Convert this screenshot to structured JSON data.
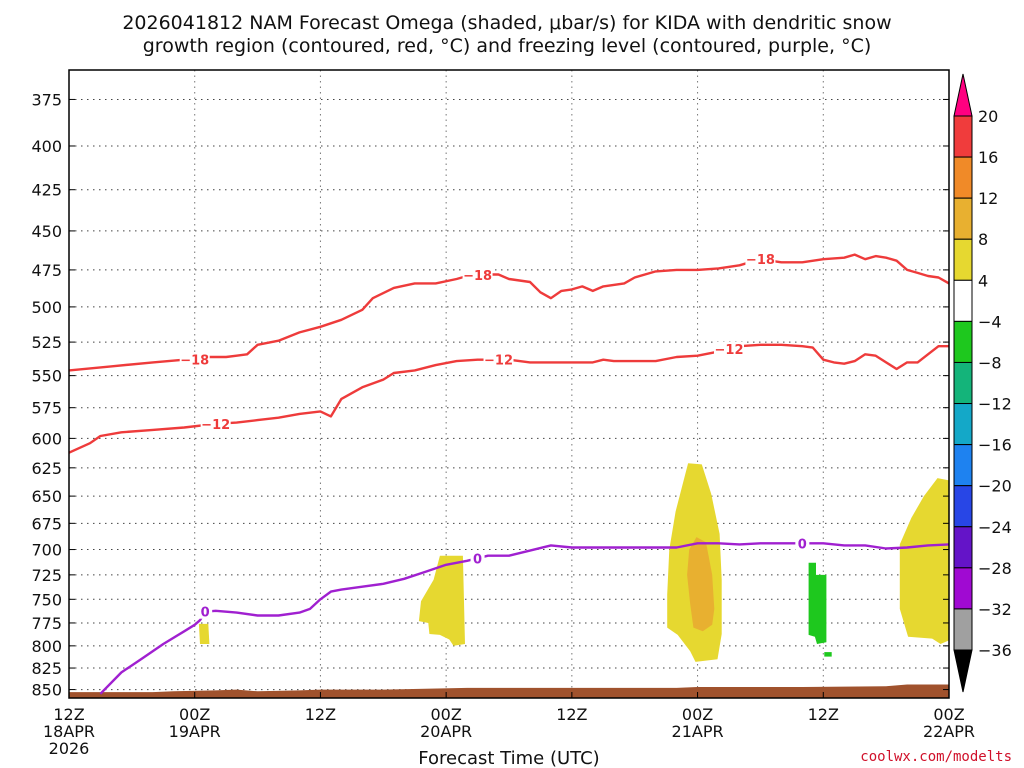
{
  "chart_data": {
    "type": "heatmap",
    "title_line1": "2026041812 NAM Forecast Omega (shaded, μbar/s) for KIDA with dendritic snow",
    "title_line2": "growth region (contoured, red, °C) and freezing level (contoured, purple, °C)",
    "xlabel": "Forecast Time (UTC)",
    "credit": "coolwx.com/modelts",
    "x_range_hours": [
      0,
      84
    ],
    "y_range_hPa": [
      360,
      860
    ],
    "y_ticks": [
      375,
      400,
      425,
      450,
      475,
      500,
      525,
      550,
      575,
      600,
      625,
      650,
      675,
      700,
      725,
      750,
      775,
      800,
      825,
      850
    ],
    "x_ticks": [
      {
        "hour": 0,
        "line1": "12Z",
        "line2": "18APR",
        "line3": "2026"
      },
      {
        "hour": 12,
        "line1": "00Z",
        "line2": "19APR",
        "line3": ""
      },
      {
        "hour": 24,
        "line1": "12Z",
        "line2": "",
        "line3": ""
      },
      {
        "hour": 36,
        "line1": "00Z",
        "line2": "20APR",
        "line3": ""
      },
      {
        "hour": 48,
        "line1": "12Z",
        "line2": "",
        "line3": ""
      },
      {
        "hour": 60,
        "line1": "00Z",
        "line2": "21APR",
        "line3": ""
      },
      {
        "hour": 72,
        "line1": "12Z",
        "line2": "",
        "line3": ""
      },
      {
        "hour": 84,
        "line1": "00Z",
        "line2": "22APR",
        "line3": ""
      }
    ],
    "colorbar": {
      "labels": [
        "20",
        "16",
        "12",
        "8",
        "4",
        "−4",
        "−8",
        "−12",
        "−16",
        "−20",
        "−24",
        "−28",
        "−32",
        "−36"
      ],
      "colors": [
        "#ff0080",
        "#f03c3c",
        "#f08a28",
        "#e8b030",
        "#e6d830",
        "#ffffff",
        "#1ec81e",
        "#14b47a",
        "#14a8c8",
        "#1e82f0",
        "#2846e6",
        "#6414c8",
        "#a00ad2",
        "#a0a0a0",
        "#000000"
      ]
    },
    "series": [
      {
        "name": "-18 C isotherm",
        "label": "−18",
        "color": "#ee3b3b",
        "label_hours": [
          12,
          39,
          66
        ],
        "points": [
          [
            0,
            546
          ],
          [
            4,
            543
          ],
          [
            8,
            540
          ],
          [
            11,
            538
          ],
          [
            12,
            538
          ],
          [
            13,
            536
          ],
          [
            15,
            536
          ],
          [
            16,
            535
          ],
          [
            17,
            534
          ],
          [
            18,
            527
          ],
          [
            20,
            524
          ],
          [
            22,
            518
          ],
          [
            24,
            514
          ],
          [
            26,
            509
          ],
          [
            28,
            502
          ],
          [
            29,
            494
          ],
          [
            31,
            487
          ],
          [
            33,
            484
          ],
          [
            35,
            484
          ],
          [
            37,
            481
          ],
          [
            38,
            479
          ],
          [
            40,
            478
          ],
          [
            41,
            478
          ],
          [
            42,
            481
          ],
          [
            44,
            483
          ],
          [
            45,
            490
          ],
          [
            46,
            494
          ],
          [
            47,
            489
          ],
          [
            48,
            488
          ],
          [
            49,
            486
          ],
          [
            50,
            489
          ],
          [
            51,
            486
          ],
          [
            53,
            484
          ],
          [
            54,
            480
          ],
          [
            56,
            476
          ],
          [
            58,
            475
          ],
          [
            60,
            475
          ],
          [
            62,
            474
          ],
          [
            64,
            472
          ],
          [
            66,
            468
          ],
          [
            68,
            470
          ],
          [
            70,
            470
          ],
          [
            72,
            468
          ],
          [
            74,
            467
          ],
          [
            75,
            465
          ],
          [
            76,
            468
          ],
          [
            77,
            466
          ],
          [
            78,
            467
          ],
          [
            79,
            469
          ],
          [
            80,
            475
          ],
          [
            81,
            477
          ],
          [
            82,
            479
          ],
          [
            83,
            480
          ],
          [
            84,
            484
          ]
        ]
      },
      {
        "name": "-12 C isotherm",
        "label": "−12",
        "color": "#ee3b3b",
        "label_hours": [
          14,
          41,
          63
        ],
        "points": [
          [
            0,
            612
          ],
          [
            2,
            604
          ],
          [
            3,
            598
          ],
          [
            5,
            595
          ],
          [
            8,
            593
          ],
          [
            11,
            591
          ],
          [
            14,
            588
          ],
          [
            16,
            587
          ],
          [
            18,
            585
          ],
          [
            20,
            583
          ],
          [
            22,
            580
          ],
          [
            24,
            578
          ],
          [
            25,
            582
          ],
          [
            26,
            568
          ],
          [
            28,
            559
          ],
          [
            30,
            553
          ],
          [
            31,
            548
          ],
          [
            33,
            546
          ],
          [
            35,
            542
          ],
          [
            37,
            539
          ],
          [
            39,
            538
          ],
          [
            41,
            538
          ],
          [
            42,
            538
          ],
          [
            44,
            540
          ],
          [
            46,
            540
          ],
          [
            48,
            540
          ],
          [
            50,
            540
          ],
          [
            51,
            538
          ],
          [
            52,
            539
          ],
          [
            54,
            539
          ],
          [
            56,
            539
          ],
          [
            58,
            536
          ],
          [
            60,
            535
          ],
          [
            62,
            532
          ],
          [
            64,
            528
          ],
          [
            66,
            527
          ],
          [
            68,
            527
          ],
          [
            70,
            528
          ],
          [
            71,
            529
          ],
          [
            72,
            538
          ],
          [
            73,
            540
          ],
          [
            74,
            541
          ],
          [
            75,
            539
          ],
          [
            76,
            534
          ],
          [
            77,
            535
          ],
          [
            78,
            540
          ],
          [
            79,
            545
          ],
          [
            80,
            540
          ],
          [
            81,
            540
          ],
          [
            82,
            534
          ],
          [
            83,
            528
          ],
          [
            84,
            528
          ]
        ]
      },
      {
        "name": "0 C freezing level",
        "label": "0",
        "color": "#a020d0",
        "label_hours": [
          13,
          39,
          70
        ],
        "points": [
          [
            3,
            855
          ],
          [
            5,
            830
          ],
          [
            7,
            814
          ],
          [
            9,
            798
          ],
          [
            11,
            784
          ],
          [
            12,
            777
          ],
          [
            12.5,
            772
          ],
          [
            13,
            763
          ],
          [
            14,
            762
          ],
          [
            16,
            764
          ],
          [
            18,
            767
          ],
          [
            20,
            767
          ],
          [
            22,
            764
          ],
          [
            23,
            760
          ],
          [
            24,
            750
          ],
          [
            25,
            742
          ],
          [
            26,
            740
          ],
          [
            28,
            737
          ],
          [
            30,
            734
          ],
          [
            32,
            729
          ],
          [
            34,
            722
          ],
          [
            36,
            715
          ],
          [
            38,
            711
          ],
          [
            40,
            706
          ],
          [
            42,
            706
          ],
          [
            44,
            701
          ],
          [
            46,
            696
          ],
          [
            48,
            698
          ],
          [
            50,
            698
          ],
          [
            52,
            698
          ],
          [
            54,
            698
          ],
          [
            56,
            698
          ],
          [
            58,
            698
          ],
          [
            60,
            694
          ],
          [
            62,
            694
          ],
          [
            64,
            695
          ],
          [
            66,
            694
          ],
          [
            68,
            694
          ],
          [
            70,
            694
          ],
          [
            72,
            694
          ],
          [
            74,
            696
          ],
          [
            76,
            696
          ],
          [
            78,
            699
          ],
          [
            80,
            698
          ],
          [
            82,
            696
          ],
          [
            84,
            695
          ]
        ]
      }
    ],
    "shaded_regions": [
      {
        "name": "omega 4-8 early",
        "color": "#e6d830",
        "points": [
          [
            12.4,
            776
          ],
          [
            13.3,
            776
          ],
          [
            13.4,
            798
          ],
          [
            12.5,
            798
          ]
        ]
      },
      {
        "name": "omega 4-8 20APR",
        "color": "#e6d830",
        "points": [
          [
            35.4,
            706
          ],
          [
            37.6,
            706
          ],
          [
            37.8,
            798
          ],
          [
            36.7,
            800
          ],
          [
            36.3,
            793
          ],
          [
            35.4,
            788
          ],
          [
            34.4,
            787
          ],
          [
            34.3,
            775
          ],
          [
            33.4,
            773
          ],
          [
            33.6,
            752
          ],
          [
            34.8,
            730
          ]
        ]
      },
      {
        "name": "omega 4-8 21APR",
        "color": "#e6d830",
        "points": [
          [
            59.1,
            621
          ],
          [
            60.4,
            622
          ],
          [
            61.3,
            648
          ],
          [
            62.1,
            685
          ],
          [
            62.3,
            730
          ],
          [
            62.3,
            787
          ],
          [
            61.9,
            815
          ],
          [
            59.8,
            818
          ],
          [
            59.3,
            806
          ],
          [
            58.1,
            788
          ],
          [
            57.1,
            780
          ],
          [
            57.1,
            745
          ],
          [
            57.3,
            700
          ],
          [
            57.9,
            664
          ]
        ]
      },
      {
        "name": "omega 8-12 21APR",
        "color": "#e8b030",
        "points": [
          [
            59.9,
            688
          ],
          [
            60.8,
            693
          ],
          [
            61.4,
            725
          ],
          [
            61.6,
            760
          ],
          [
            61.4,
            777
          ],
          [
            60.5,
            784
          ],
          [
            59.6,
            780
          ],
          [
            59.3,
            755
          ],
          [
            59.0,
            725
          ],
          [
            59.2,
            700
          ]
        ]
      },
      {
        "name": "omega 4-8 22APR",
        "color": "#e6d830",
        "points": [
          [
            82.9,
            634
          ],
          [
            84,
            636
          ],
          [
            84,
            794
          ],
          [
            83.2,
            798
          ],
          [
            82.4,
            792
          ],
          [
            80.1,
            790
          ],
          [
            79.3,
            760
          ],
          [
            79.3,
            695
          ],
          [
            80.4,
            670
          ],
          [
            81.6,
            650
          ]
        ]
      },
      {
        "name": "omega -4 to -8 22APR",
        "color": "#1ec81e",
        "points": [
          [
            70.6,
            713
          ],
          [
            71.3,
            713
          ],
          [
            71.3,
            725
          ],
          [
            72.3,
            725
          ],
          [
            72.3,
            796
          ],
          [
            71.4,
            798
          ],
          [
            71.2,
            790
          ],
          [
            70.6,
            788
          ]
        ]
      },
      {
        "name": "omega -4 to -8 small",
        "color": "#1ec81e",
        "points": [
          [
            72.1,
            807
          ],
          [
            72.8,
            807
          ],
          [
            72.8,
            812
          ],
          [
            72.1,
            812
          ]
        ]
      }
    ],
    "terrain": {
      "color": "#a0522d",
      "points": [
        [
          0,
          853
        ],
        [
          8,
          853
        ],
        [
          10,
          852
        ],
        [
          14,
          851
        ],
        [
          16,
          850
        ],
        [
          18,
          852
        ],
        [
          22,
          851
        ],
        [
          24,
          850
        ],
        [
          27,
          850
        ],
        [
          30,
          850
        ],
        [
          34,
          849
        ],
        [
          38,
          848
        ],
        [
          42,
          848
        ],
        [
          50,
          848
        ],
        [
          58,
          848
        ],
        [
          60,
          847
        ],
        [
          70,
          847
        ],
        [
          78,
          846
        ],
        [
          80,
          844
        ],
        [
          84,
          844
        ]
      ]
    }
  }
}
